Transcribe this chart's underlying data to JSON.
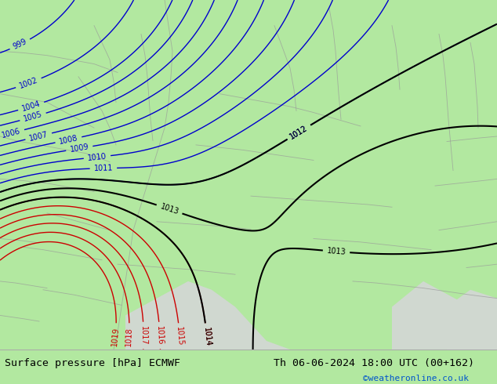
{
  "title_left": "Surface pressure [hPa] ECMWF",
  "title_right": "Th 06-06-2024 18:00 UTC (00+162)",
  "credit": "©weatheronline.co.uk",
  "bg_color_land": "#b2e8a0",
  "bg_color_sea": "#d0d8d0",
  "bg_color_outer": "#c8d8e8",
  "border_color": "#999999",
  "blue_isobar_color": "#0000cc",
  "black_isobar_color": "#000000",
  "red_isobar_color": "#cc0000",
  "bottom_bar_color": "#e8e8e8",
  "bottom_text_color": "#000000",
  "credit_color": "#0055cc",
  "isobar_lw": 1.0,
  "label_fontsize": 7
}
